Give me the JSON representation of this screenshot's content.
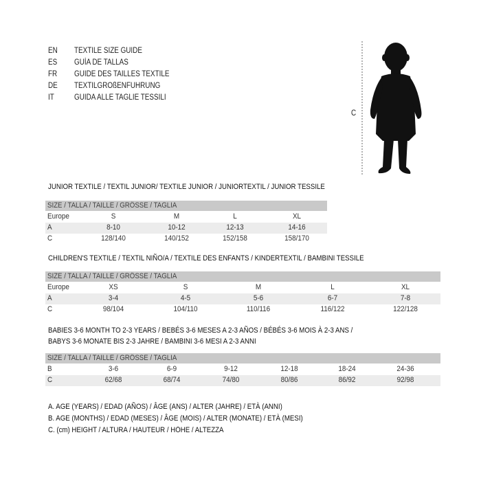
{
  "languages": [
    {
      "code": "EN",
      "text": "TEXTILE SIZE GUIDE"
    },
    {
      "code": "ES",
      "text": "GUÍA DE TALLAS"
    },
    {
      "code": "FR",
      "text": "GUIDE DES TAILLES TEXTILE"
    },
    {
      "code": "DE",
      "text": "TEXTILGRÖßENFÜHRUNG"
    },
    {
      "code": "IT",
      "text": "GUIDA ALLE TAGLIE TESSILI"
    }
  ],
  "figure": {
    "measure_label": "C",
    "icon": "child-silhouette"
  },
  "colors": {
    "header_bg": "#c9c9c9",
    "alt_row_bg": "#ececec"
  },
  "tables": [
    {
      "title": "JUNIOR TEXTILE / TEXTIL JUNIOR/ TEXTILE JUNIOR / JUNIORTEXTIL / JUNIOR TESSILE",
      "header": "SIZE / TALLA / TAILLE / GRÖSSE / TAGLIA",
      "rows": [
        {
          "label": "Europe",
          "values": [
            "S",
            "M",
            "L",
            "XL"
          ]
        },
        {
          "label": "A",
          "values": [
            "8-10",
            "10-12",
            "12-13",
            "14-16"
          ]
        },
        {
          "label": "C",
          "values": [
            "128/140",
            "140/152",
            "152/158",
            "158/170"
          ]
        }
      ]
    },
    {
      "title": "CHILDREN'S TEXTILE / TEXTIL NIÑO/A / TEXTILE DES ENFANTS / KINDERTEXTIL / BAMBINI TESSILE",
      "header": "SIZE / TALLA / TAILLE / GRÖSSE / TAGLIA",
      "rows": [
        {
          "label": "Europe",
          "values": [
            "XS",
            "S",
            "M",
            "L",
            "XL"
          ]
        },
        {
          "label": "A",
          "values": [
            "3-4",
            "4-5",
            "5-6",
            "6-7",
            "7-8"
          ]
        },
        {
          "label": "C",
          "values": [
            "98/104",
            "104/110",
            "110/116",
            "116/122",
            "122/128"
          ]
        }
      ]
    },
    {
      "title": "BABIES 3-6 MONTH TO 2-3 YEARS / BEBÉS 3-6 MESES A 2-3 AÑOS / BÉBÉS 3-6 MOIS À 2-3 ANS /",
      "title2": "BABYS 3-6 MONATE BIS 2-3 JAHRE / BAMBINI 3-6 MESI A 2-3 ANNI",
      "header": "SIZE / TALLA / TAILLE / GRÖSSE / TAGLIA",
      "rows": [
        {
          "label": "B",
          "values": [
            "3-6",
            "6-9",
            "9-12",
            "12-18",
            "18-24",
            "24-36"
          ]
        },
        {
          "label": "C",
          "values": [
            "62/68",
            "68/74",
            "74/80",
            "80/86",
            "86/92",
            "92/98"
          ]
        }
      ]
    }
  ],
  "legend": [
    "A. AGE (YEARS) / EDAD (AÑOS) / ÂGE (ANS) / ALTER (JAHRE) / ETÀ (ANNI)",
    "B. AGE (MONTHS) / EDAD (MESES) / ÂGE (MOIS) / ALTER (MONATE) / ETÀ (MESI)",
    "C. (cm) HEIGHT / ALTURA / HAUTEUR / HÖHE / ALTEZZA"
  ]
}
